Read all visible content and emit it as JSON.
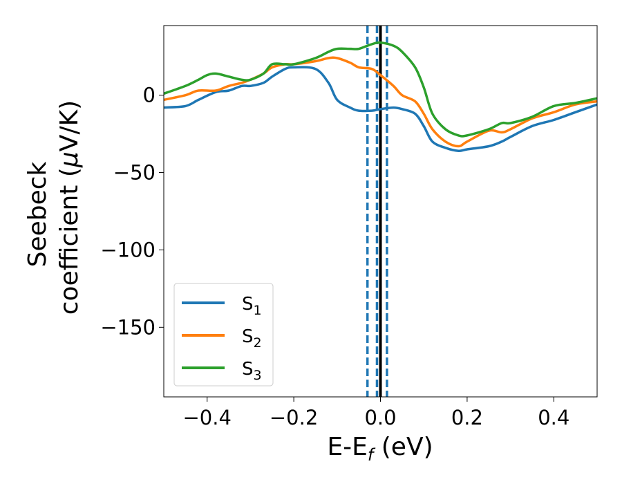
{
  "chart_data": {
    "type": "line",
    "title": "",
    "xlabel": "E-E",
    "xlabel_sub": "f",
    "xlabel_unit": " (eV)",
    "ylabel_line1": "Seebeck",
    "ylabel_line2_prefix": "coefficient  (",
    "ylabel_mu": "μ",
    "ylabel_line2_suffix": "V/K)",
    "xlim": [
      -0.5,
      0.5
    ],
    "ylim": [
      -195,
      45
    ],
    "grid": false,
    "legend_position": "lower-left",
    "x_ticks": [
      -0.4,
      -0.2,
      0.0,
      0.2,
      0.4
    ],
    "x_tick_labels": [
      "−0.4",
      "−0.2",
      "0.0",
      "0.2",
      "0.4"
    ],
    "y_ticks": [
      0,
      -50,
      -100,
      -150
    ],
    "y_tick_labels": [
      "0",
      "−50",
      "−100",
      "−150"
    ],
    "vertical_lines": [
      {
        "x": 0.0,
        "style": "solid",
        "color": "#000000"
      },
      {
        "x": -0.03,
        "style": "dashed",
        "color": "#1f77b4"
      },
      {
        "x": -0.008,
        "style": "dashed",
        "color": "#1f77b4"
      },
      {
        "x": 0.015,
        "style": "dashed",
        "color": "#1f77b4"
      }
    ],
    "series": [
      {
        "name": "S",
        "sub": "1",
        "color": "#1f77b4",
        "x": [
          -0.5,
          -0.45,
          -0.42,
          -0.38,
          -0.35,
          -0.32,
          -0.3,
          -0.27,
          -0.25,
          -0.22,
          -0.2,
          -0.15,
          -0.12,
          -0.1,
          -0.07,
          -0.05,
          -0.02,
          0.0,
          0.03,
          0.05,
          0.08,
          0.1,
          0.12,
          0.15,
          0.18,
          0.2,
          0.25,
          0.28,
          0.3,
          0.35,
          0.4,
          0.45,
          0.5
        ],
        "y": [
          -8,
          -7,
          -3,
          2,
          3,
          6,
          6,
          8,
          12,
          17,
          18,
          17,
          8,
          -3,
          -8,
          -10,
          -10,
          -9,
          -8,
          -9,
          -12,
          -20,
          -30,
          -34,
          -36,
          -35,
          -33,
          -30,
          -27,
          -20,
          -16,
          -11,
          -6
        ]
      },
      {
        "name": "S",
        "sub": "2",
        "color": "#ff7f0e",
        "x": [
          -0.5,
          -0.45,
          -0.42,
          -0.38,
          -0.35,
          -0.32,
          -0.3,
          -0.27,
          -0.25,
          -0.22,
          -0.2,
          -0.15,
          -0.12,
          -0.1,
          -0.07,
          -0.05,
          -0.02,
          0.0,
          0.03,
          0.05,
          0.08,
          0.1,
          0.12,
          0.15,
          0.18,
          0.2,
          0.25,
          0.28,
          0.3,
          0.35,
          0.4,
          0.45,
          0.5
        ],
        "y": [
          -3,
          0,
          3,
          3,
          6,
          8,
          10,
          14,
          18,
          20,
          20,
          22,
          24,
          24,
          21,
          18,
          17,
          13,
          6,
          0,
          -4,
          -12,
          -22,
          -30,
          -33,
          -30,
          -23,
          -24,
          -22,
          -15,
          -11,
          -6,
          -4
        ]
      },
      {
        "name": "S",
        "sub": "3",
        "color": "#2ca02c",
        "x": [
          -0.5,
          -0.45,
          -0.42,
          -0.4,
          -0.38,
          -0.35,
          -0.32,
          -0.3,
          -0.27,
          -0.25,
          -0.22,
          -0.2,
          -0.15,
          -0.12,
          -0.1,
          -0.07,
          -0.05,
          -0.02,
          0.0,
          0.03,
          0.05,
          0.08,
          0.1,
          0.12,
          0.15,
          0.18,
          0.2,
          0.25,
          0.28,
          0.3,
          0.35,
          0.4,
          0.45,
          0.5
        ],
        "y": [
          1,
          6,
          10,
          13,
          14,
          12,
          10,
          10,
          14,
          20,
          20,
          20,
          24,
          28,
          30,
          30,
          30,
          33,
          34,
          32,
          28,
          18,
          5,
          -12,
          -22,
          -26,
          -26,
          -22,
          -18,
          -18,
          -14,
          -7,
          -5,
          -2
        ]
      }
    ]
  }
}
